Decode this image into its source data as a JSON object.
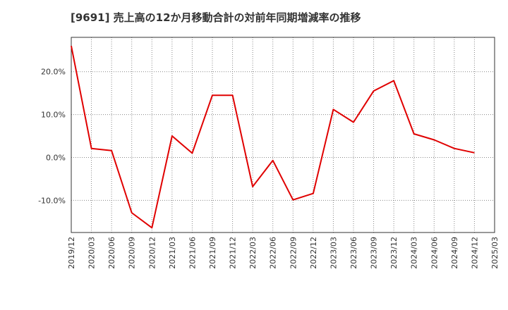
{
  "chart_data": {
    "type": "line",
    "title": "[9691]  売上高の12か月移動合計の対前年同期増減率の推移",
    "xlabel": "",
    "ylabel": "",
    "categories": [
      "2019/12",
      "2020/03",
      "2020/06",
      "2020/09",
      "2020/12",
      "2021/03",
      "2021/06",
      "2021/09",
      "2021/12",
      "2022/03",
      "2022/06",
      "2022/09",
      "2022/12",
      "2023/03",
      "2023/06",
      "2023/09",
      "2023/12",
      "2024/03",
      "2024/06",
      "2024/09",
      "2024/12",
      "2025/03"
    ],
    "series": [
      {
        "color": "#e00000",
        "values": [
          26.0,
          2.1,
          1.6,
          -12.9,
          -16.4,
          5.0,
          1.0,
          14.5,
          14.5,
          -6.8,
          -0.7,
          -9.9,
          -8.4,
          11.2,
          8.2,
          15.5,
          17.9,
          5.5,
          4.1,
          2.1,
          1.1,
          null
        ]
      }
    ],
    "ylim": [
      -17.5,
      28.0
    ],
    "yticks": [
      -10,
      0,
      10,
      20
    ],
    "ytick_labels": [
      "-10.0%",
      "0.0%",
      "10.0%",
      "20.0%"
    ],
    "grid": true,
    "legend": "none"
  }
}
